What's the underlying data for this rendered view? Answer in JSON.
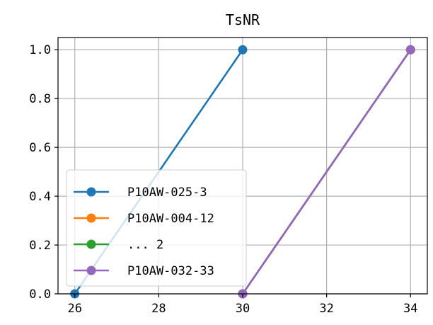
{
  "chart_data": {
    "type": "line",
    "title": "TsNR",
    "xlabel": "",
    "ylabel": "",
    "xlim": [
      25.6,
      34.4
    ],
    "ylim": [
      0.0,
      1.05
    ],
    "xticks": [
      26,
      28,
      30,
      32,
      34
    ],
    "yticks": [
      0.0,
      0.2,
      0.4,
      0.6,
      0.8,
      1.0
    ],
    "xtick_labels": [
      "26",
      "28",
      "30",
      "32",
      "34"
    ],
    "ytick_labels": [
      "0.0",
      "0.2",
      "0.4",
      "0.6",
      "0.8",
      "1.0"
    ],
    "grid": true,
    "legend_position": "lower-left",
    "series": [
      {
        "name": "P10AW-025-3",
        "color": "#1f77b4",
        "x": [
          26,
          30
        ],
        "y": [
          0.0,
          1.0
        ]
      },
      {
        "name": "P10AW-004-12",
        "color": "#ff7f0e",
        "x": [
          30,
          34
        ],
        "y": [
          0.0,
          1.0
        ]
      },
      {
        "name": "... 2",
        "color": "#2ca02c",
        "x": [
          30,
          34
        ],
        "y": [
          0.0,
          1.0
        ]
      },
      {
        "name": "P10AW-032-33",
        "color": "#9467bd",
        "x": [
          30,
          34
        ],
        "y": [
          0.0,
          1.0
        ]
      }
    ]
  }
}
